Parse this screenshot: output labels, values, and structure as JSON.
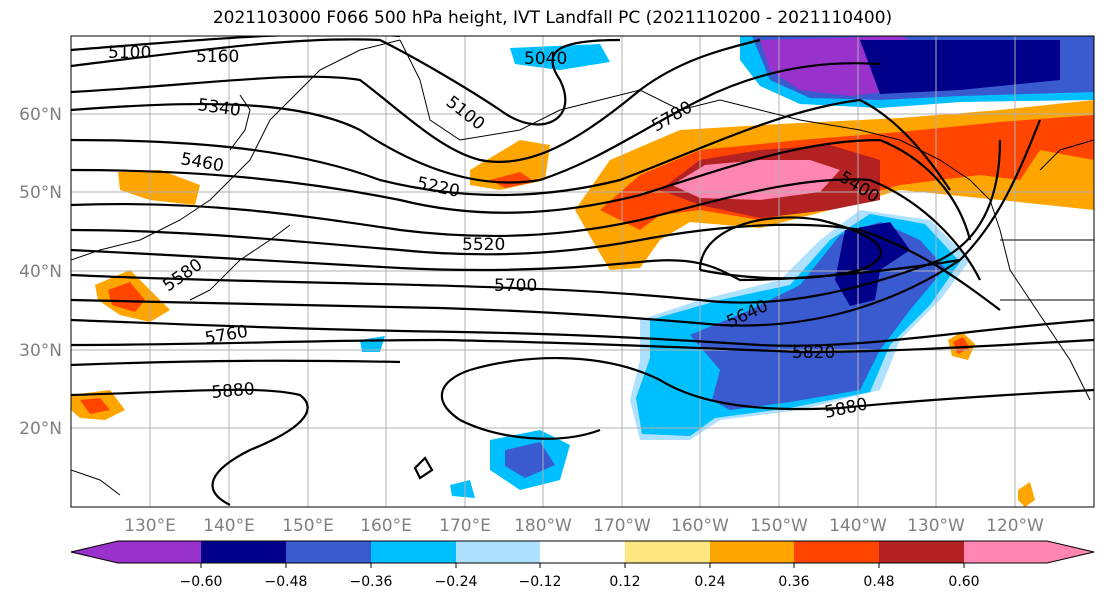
{
  "title": "2021103000 F066 500 hPa height, IVT Landfall PC (2021110200 - 2021110400)",
  "lat_labels": [
    "60°N",
    "50°N",
    "40°N",
    "30°N",
    "20°N"
  ],
  "lon_labels": [
    "130°E",
    "140°E",
    "150°E",
    "160°E",
    "170°E",
    "180°W",
    "170°W",
    "160°W",
    "150°W",
    "140°W",
    "130°W",
    "120°W"
  ],
  "contour_labels": [
    "5100",
    "5160",
    "5040",
    "5100",
    "5340",
    "5780",
    "5460",
    "5220",
    "5400",
    "5520",
    "5580",
    "5700",
    "5640",
    "5760",
    "5820",
    "5880",
    "5880"
  ],
  "colorbar": {
    "ticks": [
      "−0.60",
      "−0.48",
      "−0.36",
      "−0.24",
      "−0.12",
      "0.12",
      "0.24",
      "0.36",
      "0.48",
      "0.60"
    ],
    "colors": [
      "#9932cc",
      "#00008b",
      "#3a5ad0",
      "#00bfff",
      "#aee0ff",
      "#ffffff",
      "#ffe680",
      "#ffa500",
      "#ff4500",
      "#b22222",
      "#ff86b0"
    ]
  }
}
